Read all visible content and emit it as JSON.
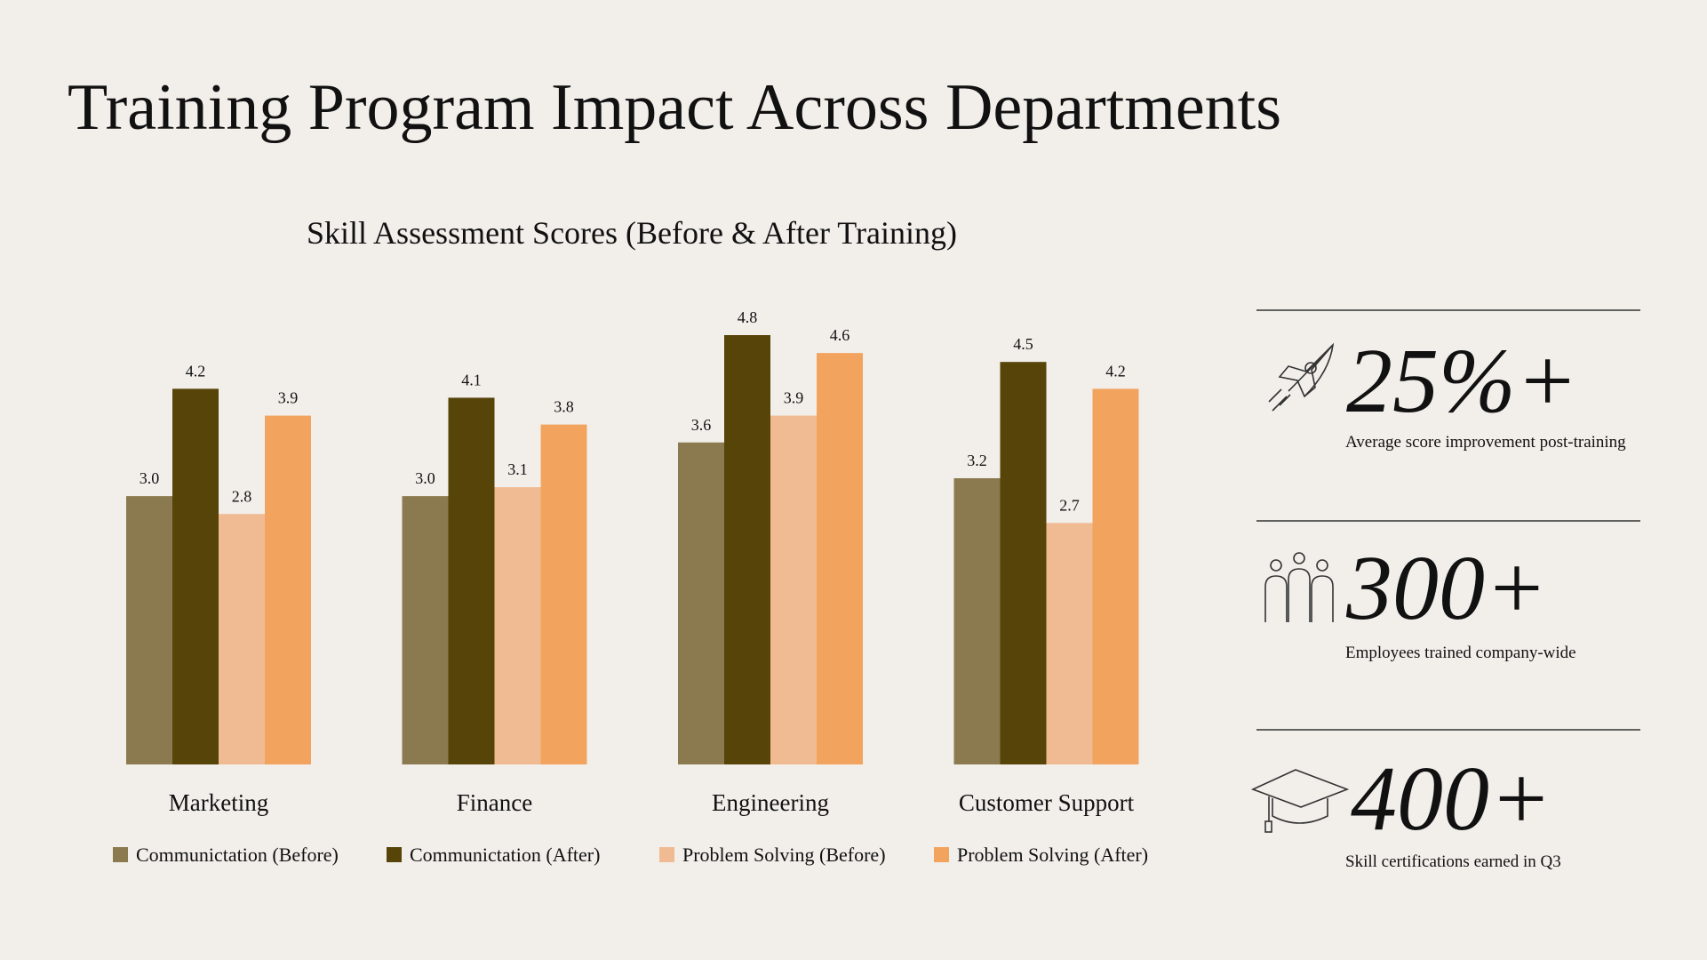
{
  "title": "Training Program Impact Across Departments",
  "chart_data": {
    "type": "bar",
    "title": "Skill Assessment Scores (Before & After Training)",
    "categories": [
      "Marketing",
      "Finance",
      "Engineering",
      "Customer Support"
    ],
    "series": [
      {
        "name": "Communictation (Before)",
        "color": "#8b7a4f",
        "values": [
          3.0,
          3.0,
          3.6,
          3.2
        ],
        "value_labels": [
          "3.0",
          "3.0",
          "3.6",
          "3.2"
        ]
      },
      {
        "name": "Communictation (After)",
        "color": "#574409",
        "values": [
          4.2,
          4.1,
          4.8,
          4.5
        ],
        "value_labels": [
          "4.2",
          "4.1",
          "4.8",
          "4.5"
        ]
      },
      {
        "name": "Problem Solving (Before)",
        "color": "#f0bb92",
        "values": [
          2.8,
          3.1,
          3.9,
          2.7
        ],
        "value_labels": [
          "2.8",
          "3.1",
          "3.9",
          "2.7"
        ]
      },
      {
        "name": "Problem Solving (After)",
        "color": "#f2a45f",
        "values": [
          3.9,
          3.8,
          4.6,
          4.2
        ],
        "value_labels": [
          "3.9",
          "3.8",
          "4.6",
          "4.2"
        ]
      }
    ],
    "legend": "bottom"
  },
  "stats": [
    {
      "value": "25%+",
      "label": "Average score improvement post-training"
    },
    {
      "value": "300+",
      "label": "Employees trained company-wide"
    },
    {
      "value": "400+",
      "label": "Skill certifications earned in Q3"
    }
  ]
}
